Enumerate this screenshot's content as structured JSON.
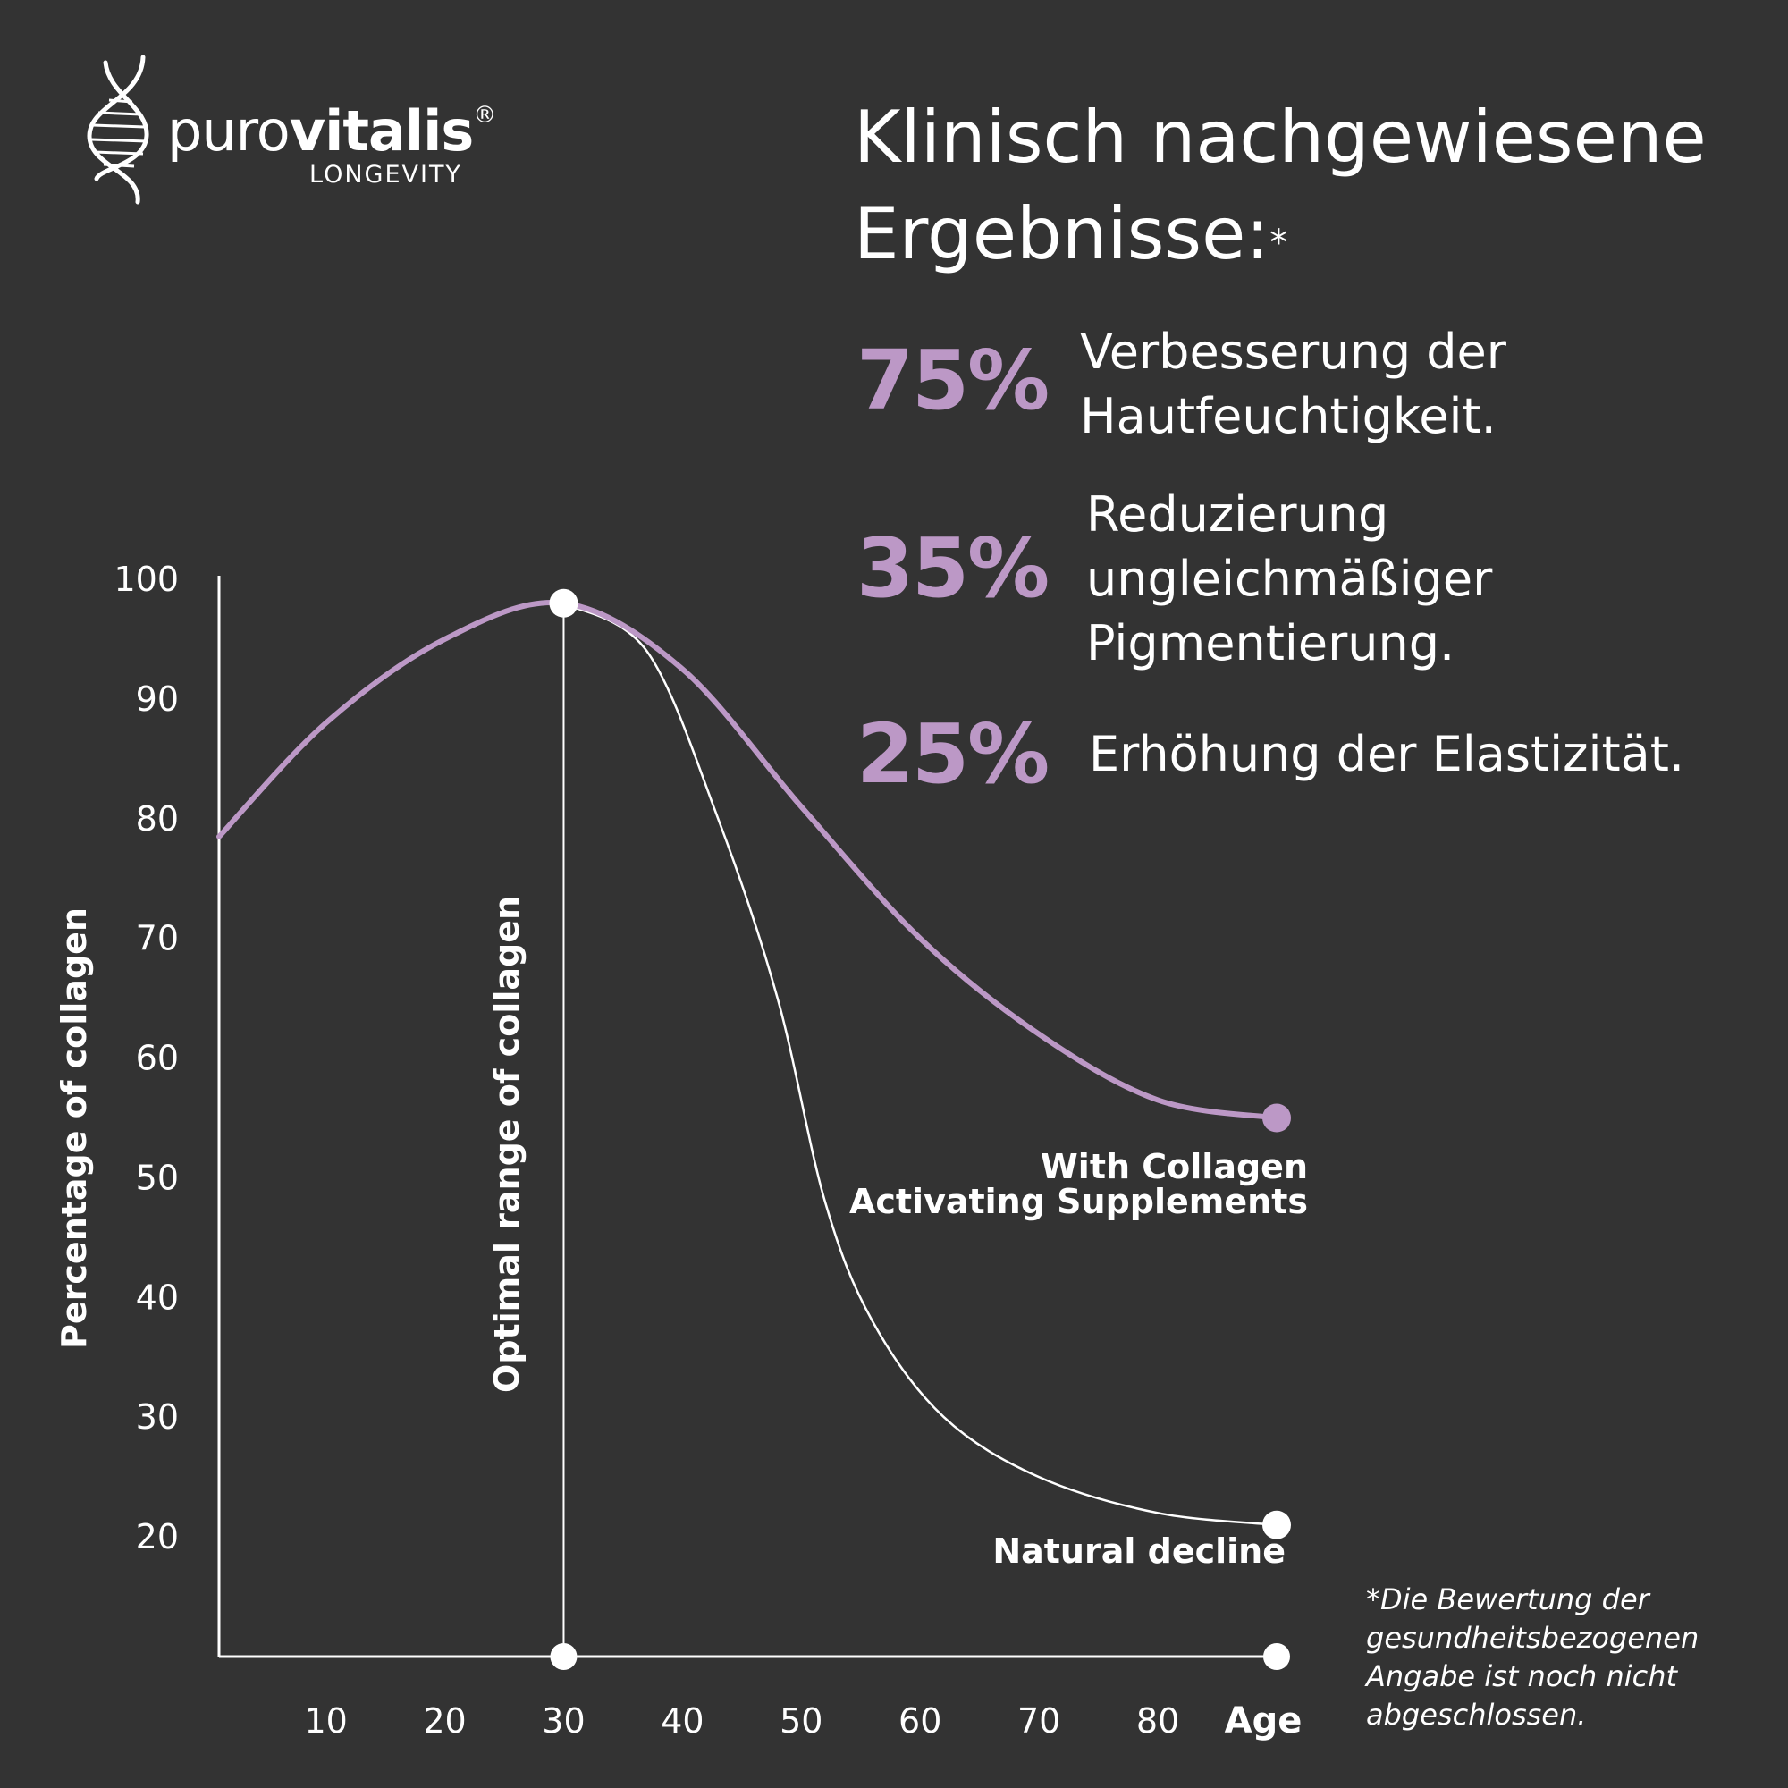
{
  "brand": {
    "name_light": "puro",
    "name_bold": "vitalis",
    "registered": "®",
    "subline": "LONGEVITY"
  },
  "headline": {
    "line1": "Klinisch nachgewiesene",
    "line2": "Ergebnisse:",
    "asterisk": "*"
  },
  "stats": [
    {
      "value": "75%",
      "line1": "Verbesserung der",
      "line2": "Hautfeuchtigkeit."
    },
    {
      "value": "35%",
      "line1": "Reduzierung",
      "line2": "ungleichmäßiger",
      "line3": "Pigmentierung."
    },
    {
      "value": "25%",
      "line1": "Erhöhung der Elastizität."
    }
  ],
  "footnote": {
    "line1": "*Die Bewertung der",
    "line2": "gesundheitsbezogenen",
    "line3": "Angabe ist noch nicht",
    "line4": "abgeschlossen."
  },
  "colors": {
    "background": "#333333",
    "accent": "#BC98C6",
    "text": "#FFFFFF"
  },
  "icons": {
    "logo": "dna-helix-icon"
  },
  "chart_data": {
    "type": "line",
    "ylabel": "Percentage of collagen",
    "xlabel": "Age",
    "x_ticks": [
      "10",
      "20",
      "30",
      "40",
      "50",
      "60",
      "70",
      "80"
    ],
    "y_ticks": [
      "20",
      "30",
      "40",
      "50",
      "60",
      "70",
      "80",
      "90",
      "100"
    ],
    "xlim": [
      1,
      90
    ],
    "ylim": [
      10,
      100
    ],
    "annotation": {
      "label": "Optimal range of collagen",
      "x": 30
    },
    "series": [
      {
        "name": "With Collagen Activating Supplements",
        "label_line1": "With Collagen",
        "label_line2": "Activating Supplements",
        "color": "#BC98C6",
        "points": [
          [
            1,
            78.5
          ],
          [
            10,
            88
          ],
          [
            20,
            95
          ],
          [
            30,
            98
          ],
          [
            40,
            92.5
          ],
          [
            50,
            81
          ],
          [
            60,
            70
          ],
          [
            70,
            62
          ],
          [
            80,
            56.5
          ],
          [
            90,
            55
          ]
        ]
      },
      {
        "name": "Natural decline",
        "label_line1": "Natural decline",
        "color": "#FFFFFF",
        "points": [
          [
            30,
            98
          ],
          [
            37,
            94
          ],
          [
            43,
            80
          ],
          [
            48,
            65
          ],
          [
            52,
            48
          ],
          [
            56,
            38
          ],
          [
            62,
            30
          ],
          [
            70,
            25
          ],
          [
            80,
            22
          ],
          [
            90,
            21
          ]
        ]
      }
    ]
  }
}
